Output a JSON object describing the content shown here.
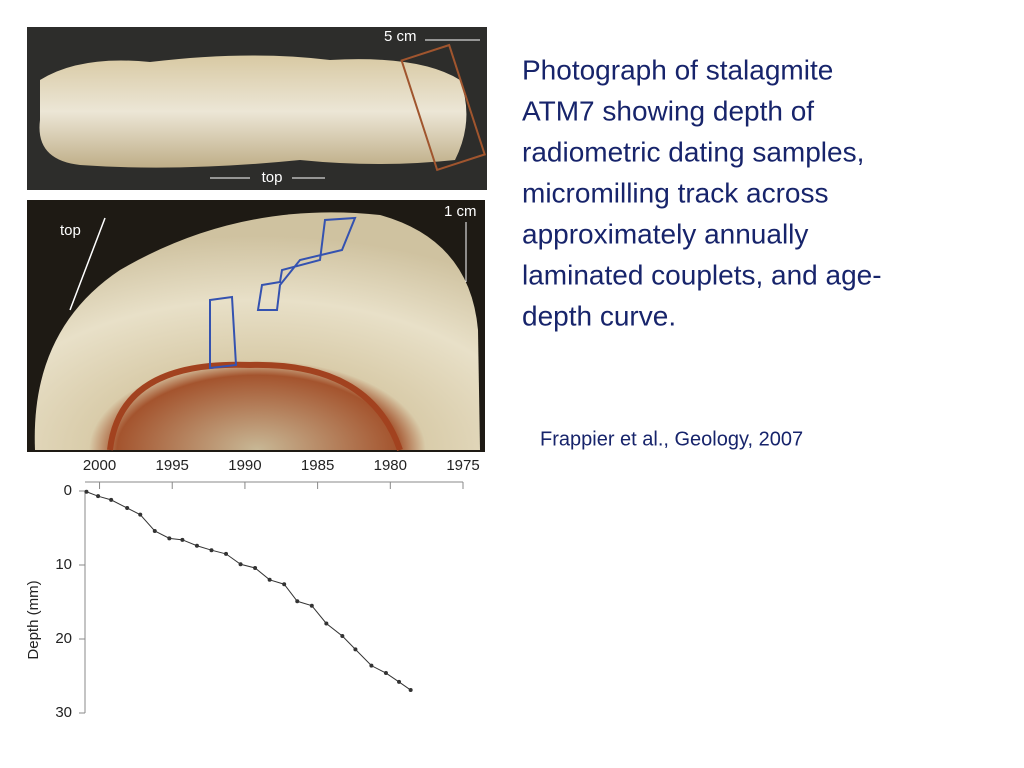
{
  "description": {
    "lines": [
      "Photograph of stalagmite",
      "ATM7 showing depth of",
      "radiometric dating samples,",
      "micromilling track across",
      "approximately annually",
      "laminated couplets, and age-",
      "depth curve."
    ]
  },
  "citation": "Frappier et al., Geology, 2007",
  "photos": {
    "top_scale": "5 cm",
    "top_arrow": "top",
    "section_scale": "1 cm",
    "section_arrow": "top"
  },
  "chart_data": {
    "type": "line",
    "y_label": "Depth (mm)",
    "color": "#333333",
    "x": [
      2000.9,
      2000.1,
      1999.2,
      1998.1,
      1997.2,
      1996.2,
      1995.2,
      1994.3,
      1993.3,
      1992.3,
      1991.3,
      1990.3,
      1989.3,
      1988.3,
      1987.3,
      1986.4,
      1985.4,
      1984.4,
      1983.3,
      1982.4,
      1981.3,
      1980.3,
      1979.4,
      1978.6
    ],
    "values": [
      0.1,
      0.7,
      1.2,
      2.3,
      3.2,
      5.4,
      6.4,
      6.6,
      7.4,
      8.0,
      8.5,
      9.9,
      10.4,
      12.0,
      12.6,
      14.9,
      15.5,
      17.9,
      19.6,
      21.4,
      23.6,
      24.6,
      25.8,
      26.9
    ],
    "xlim": [
      2001,
      1975
    ],
    "xticks": [
      2000,
      1995,
      1990,
      1985,
      1980,
      1975
    ],
    "ylim": [
      0,
      30
    ],
    "yticks": [
      0,
      10,
      20,
      30
    ]
  }
}
